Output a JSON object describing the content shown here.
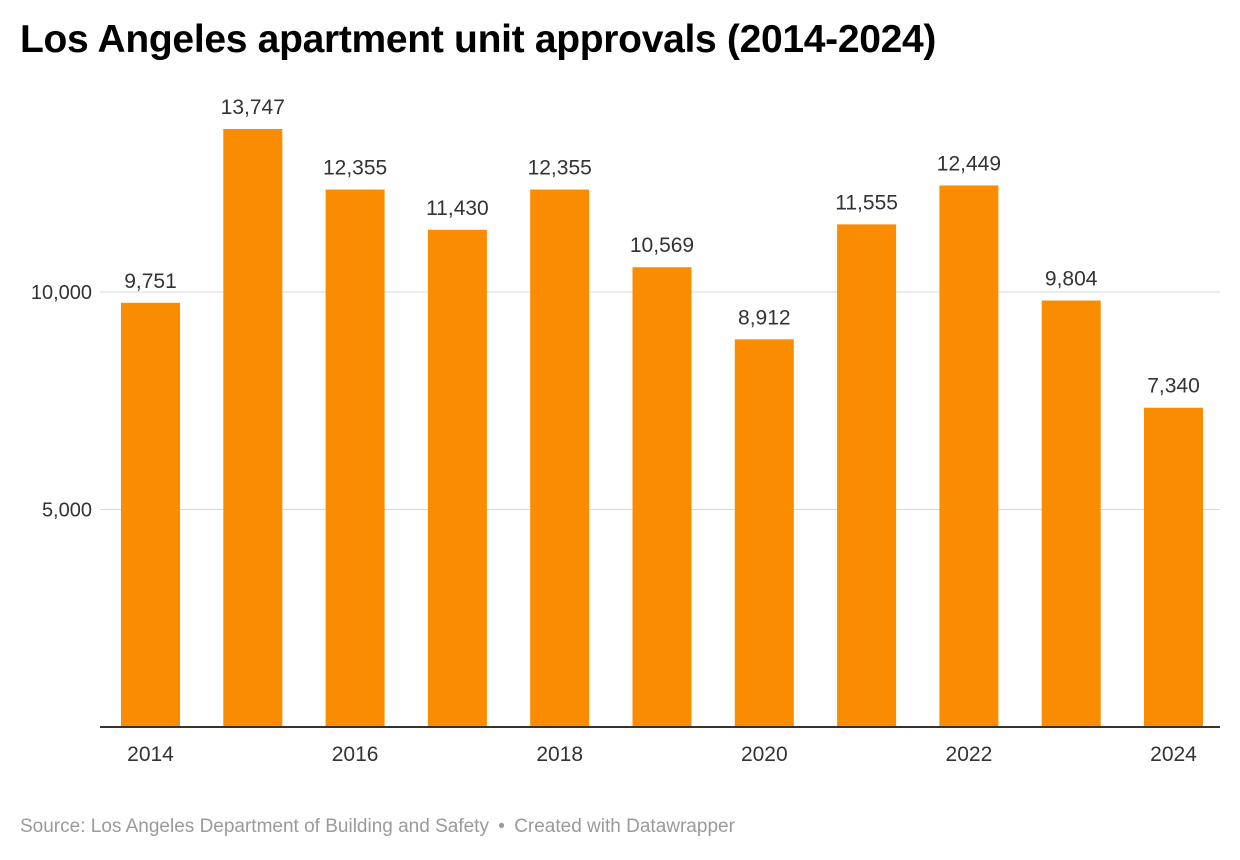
{
  "title": "Los Angeles apartment unit approvals (2014-2024)",
  "footer": {
    "source": "Source: Los Angeles Department of Building and Safety",
    "separator": "•",
    "credit": "Created with Datawrapper"
  },
  "chart_data": {
    "type": "bar",
    "title": "Los Angeles apartment unit approvals (2014-2024)",
    "categories": [
      "2014",
      "2015",
      "2016",
      "2017",
      "2018",
      "2019",
      "2020",
      "2021",
      "2022",
      "2023",
      "2024"
    ],
    "values": [
      9751,
      13747,
      12355,
      11430,
      12355,
      10569,
      8912,
      11555,
      12449,
      9804,
      7340
    ],
    "value_labels": [
      "9,751",
      "13,747",
      "12,355",
      "11,430",
      "12,355",
      "10,569",
      "8,912",
      "11,555",
      "12,449",
      "9,804",
      "7,340"
    ],
    "x_tick_labels": [
      "2014",
      "",
      "2016",
      "",
      "2018",
      "",
      "2020",
      "",
      "2022",
      "",
      "2024"
    ],
    "y_ticks": [
      5000,
      10000
    ],
    "y_tick_labels": [
      "5,000",
      "10,000"
    ],
    "ylim": [
      0,
      15000
    ],
    "grid": true,
    "xlabel": "",
    "ylabel": "",
    "bar_color": "#f98c00"
  }
}
